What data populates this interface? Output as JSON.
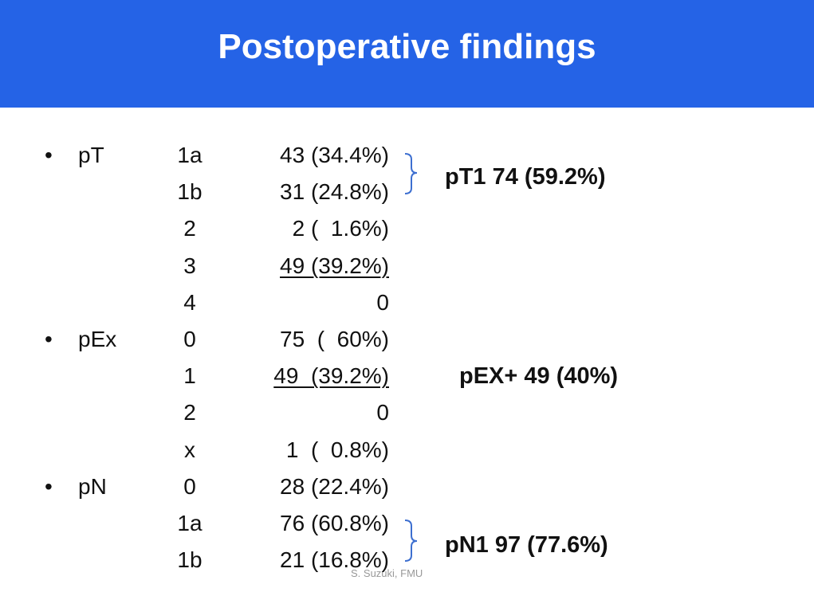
{
  "header": {
    "title": "Postoperative findings"
  },
  "groups": [
    {
      "label": "pT",
      "summary": "pT1 74 (59.2%)",
      "rows": [
        {
          "stage": "1a",
          "value": "43 (34.4%)"
        },
        {
          "stage": "1b",
          "value": "31 (24.8%)"
        },
        {
          "stage": "2",
          "value": "2 (  1.6%)"
        },
        {
          "stage": "3",
          "value": "49 (39.2%)",
          "underlined": true
        },
        {
          "stage": "4",
          "value": "0"
        }
      ]
    },
    {
      "label": "pEx",
      "summary": "pEX+ 49 (40%)",
      "rows": [
        {
          "stage": "0",
          "value": "75  (  60%)"
        },
        {
          "stage": "1",
          "value": "49  (39.2%)",
          "underlined": true
        },
        {
          "stage": "2",
          "value": "0"
        },
        {
          "stage": "x",
          "value": "1  (  0.8%)"
        }
      ]
    },
    {
      "label": "pN",
      "summary": "pN1 97 (77.6%)",
      "rows": [
        {
          "stage": "0",
          "value": "28 (22.4%)"
        },
        {
          "stage": "1a",
          "value": "76 (60.8%)"
        },
        {
          "stage": "1b",
          "value": "21 (16.8%)"
        }
      ]
    }
  ],
  "footer": "S. Suzuki, FMU"
}
